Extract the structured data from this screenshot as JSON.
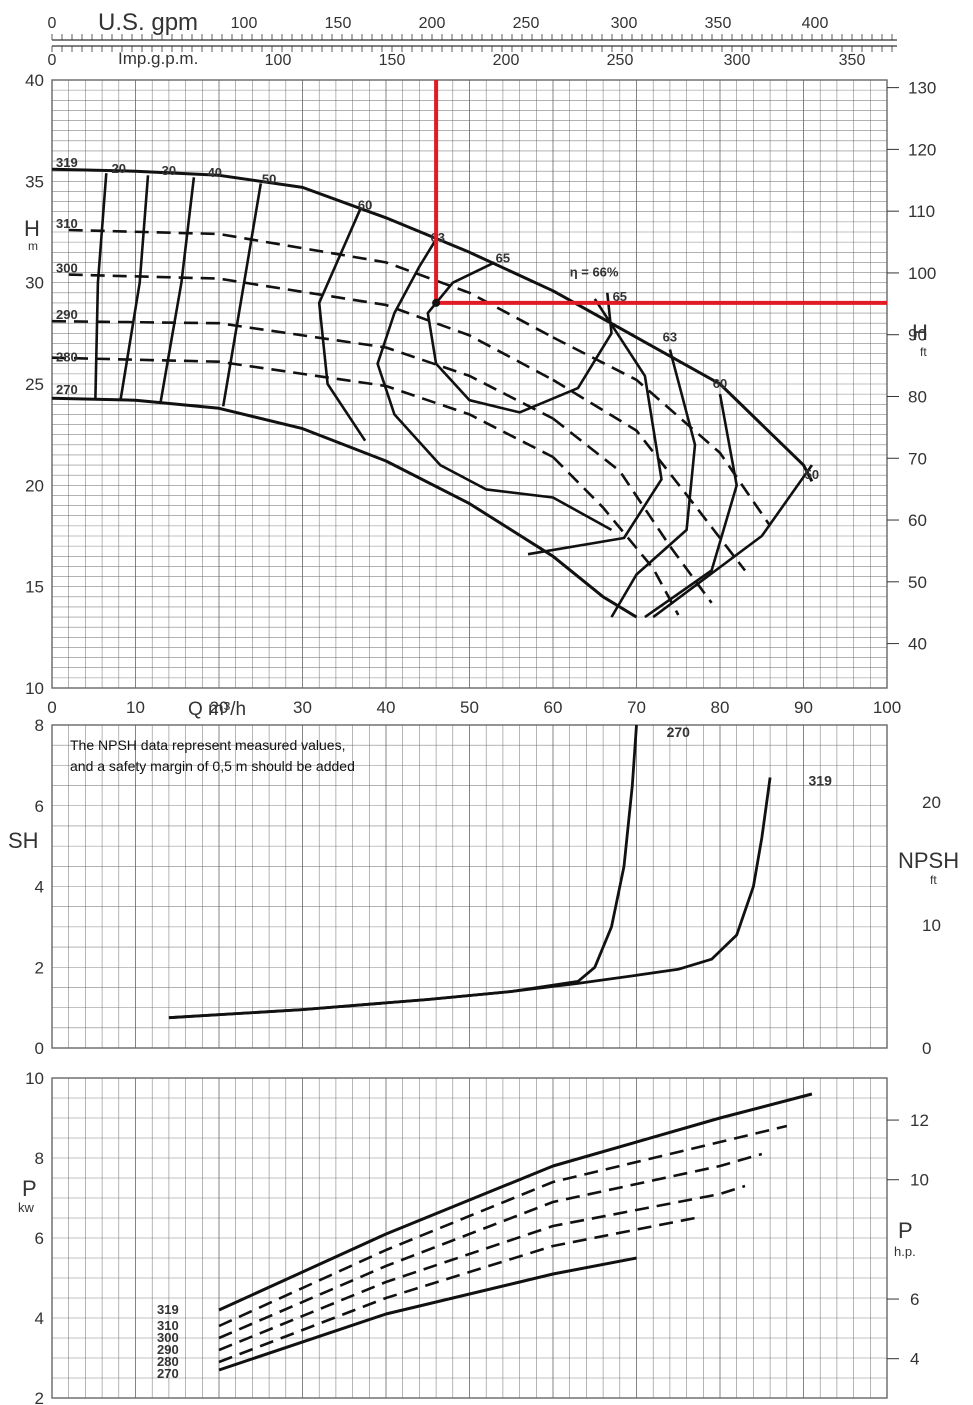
{
  "top_axes": {
    "usgpm": {
      "label": "U.S. gpm",
      "ticks": [
        "0",
        "100",
        "150",
        "200",
        "250",
        "300",
        "350",
        "400"
      ]
    },
    "impgpm": {
      "label": "Imp.g.p.m.",
      "ticks": [
        "0",
        "100",
        "150",
        "200",
        "250",
        "300",
        "350"
      ]
    }
  },
  "head_panel": {
    "ylabel": "H",
    "yunit": "m",
    "y_ticks": [
      "10",
      "15",
      "20",
      "25",
      "30",
      "35",
      "40"
    ],
    "right_label": "H",
    "right_unit": "ft",
    "right_ticks": [
      "40",
      "50",
      "60",
      "70",
      "80",
      "90",
      "100",
      "110",
      "120",
      "130"
    ],
    "impeller_labels": [
      "319",
      "310",
      "300",
      "290",
      "280",
      "270"
    ],
    "eff_labels_top": [
      "20",
      "30",
      "40",
      "50",
      "60",
      "63",
      "65"
    ],
    "eff_peak": "η = 66%",
    "eff_labels_right": [
      "65",
      "63",
      "60",
      "50"
    ]
  },
  "x_axis": {
    "label": "Q m³/h",
    "ticks": [
      "0",
      "10",
      "20",
      "30",
      "40",
      "50",
      "60",
      "70",
      "80",
      "90",
      "100"
    ]
  },
  "npsh_panel": {
    "note_line1": "The NPSH data represent measured values,",
    "note_line2": "and a safety margin of 0,5 m should be added",
    "ylabel": "SH",
    "y_ticks": [
      "0",
      "2",
      "4",
      "6",
      "8"
    ],
    "right_label": "NPSH",
    "right_unit": "ft",
    "right_ticks": [
      "0",
      "10",
      "20"
    ],
    "curve_labels": [
      "270",
      "319"
    ]
  },
  "power_panel": {
    "ylabel": "P",
    "yunit": "kw",
    "y_ticks": [
      "2",
      "4",
      "6",
      "8",
      "10"
    ],
    "right_label": "P",
    "right_unit": "h.p.",
    "right_ticks": [
      "4",
      "6",
      "10",
      "12"
    ],
    "impeller_labels": [
      "319",
      "310",
      "300",
      "290",
      "280",
      "270"
    ]
  },
  "colors": {
    "grid": "#666666",
    "curve": "#111111",
    "highlight": "#e01b24"
  },
  "chart_data": [
    {
      "type": "line",
      "title": "",
      "xlabel": "Q m³/h",
      "ylabel": "H m",
      "xlim": [
        0,
        100
      ],
      "ylim": [
        10,
        40
      ],
      "series": [
        {
          "name": "319",
          "x": [
            0,
            10,
            20,
            30,
            40,
            50,
            60,
            70,
            80,
            90,
            91
          ],
          "y": [
            35.6,
            35.5,
            35.3,
            34.7,
            33.2,
            31.5,
            29.6,
            27.3,
            25,
            21,
            20.2
          ]
        },
        {
          "name": "310",
          "x": [
            2,
            20,
            40,
            50,
            60
          ],
          "y": [
            32.6,
            32.4,
            31,
            29.5,
            27.3
          ]
        },
        {
          "name": "300",
          "x": [
            2,
            20,
            40,
            50,
            60
          ],
          "y": [
            30.4,
            30.2,
            28.9,
            27.4,
            25.2
          ]
        },
        {
          "name": "290",
          "x": [
            0,
            20,
            40,
            50,
            60
          ],
          "y": [
            28.1,
            28,
            26.8,
            25.4,
            23.3
          ]
        },
        {
          "name": "280",
          "x": [
            0,
            20,
            40,
            50,
            60
          ],
          "y": [
            26.3,
            26.1,
            24.9,
            23.5,
            21.4
          ]
        },
        {
          "name": "270",
          "x": [
            0,
            10,
            20,
            30,
            40,
            50,
            60,
            66,
            70
          ],
          "y": [
            24.3,
            24.2,
            23.8,
            22.8,
            21.2,
            19.1,
            16.5,
            14.5,
            13.5
          ]
        }
      ],
      "efficiency": [
        {
          "label": "20",
          "value": 20
        },
        {
          "label": "30",
          "value": 30
        },
        {
          "label": "40",
          "value": 40
        },
        {
          "label": "50",
          "value": 50
        },
        {
          "label": "60",
          "value": 60
        },
        {
          "label": "63",
          "value": 63
        },
        {
          "label": "65",
          "value": 65
        },
        {
          "label": "η = 66%",
          "value": 66
        }
      ],
      "highlight_point": {
        "x": 46,
        "y": 29
      }
    },
    {
      "type": "line",
      "title": "",
      "xlabel": "Q m³/h",
      "ylabel": "NPSH m",
      "xlim": [
        0,
        100
      ],
      "ylim": [
        0,
        8
      ],
      "series": [
        {
          "name": "270",
          "x": [
            14,
            30,
            45,
            55,
            63,
            65,
            67,
            68.5,
            69.5,
            70
          ],
          "y": [
            0.75,
            0.95,
            1.2,
            1.4,
            1.65,
            2,
            3,
            4.5,
            6.5,
            8
          ]
        },
        {
          "name": "319",
          "x": [
            14,
            30,
            45,
            55,
            63,
            70,
            75,
            79,
            82,
            84,
            85,
            86
          ],
          "y": [
            0.75,
            0.95,
            1.2,
            1.4,
            1.6,
            1.8,
            1.95,
            2.2,
            2.8,
            4,
            5.2,
            6.7
          ]
        }
      ]
    },
    {
      "type": "line",
      "title": "",
      "xlabel": "Q m³/h",
      "ylabel": "P kw",
      "xlim": [
        0,
        100
      ],
      "ylim": [
        2,
        10
      ],
      "series": [
        {
          "name": "319",
          "x": [
            20,
            40,
            60,
            80,
            91
          ],
          "y": [
            4.2,
            6.1,
            7.8,
            9.0,
            9.6
          ]
        },
        {
          "name": "310",
          "x": [
            20,
            40,
            60,
            80,
            88
          ],
          "y": [
            3.8,
            5.7,
            7.4,
            8.4,
            8.8
          ]
        },
        {
          "name": "300",
          "x": [
            20,
            40,
            60,
            80,
            85
          ],
          "y": [
            3.5,
            5.3,
            6.9,
            7.8,
            8.1
          ]
        },
        {
          "name": "290",
          "x": [
            20,
            40,
            60,
            80,
            83
          ],
          "y": [
            3.2,
            4.9,
            6.3,
            7.1,
            7.3
          ]
        },
        {
          "name": "280",
          "x": [
            20,
            40,
            60,
            77
          ],
          "y": [
            2.9,
            4.5,
            5.8,
            6.5
          ]
        },
        {
          "name": "270",
          "x": [
            20,
            40,
            60,
            70
          ],
          "y": [
            2.7,
            4.1,
            5.1,
            5.5
          ]
        }
      ]
    }
  ]
}
